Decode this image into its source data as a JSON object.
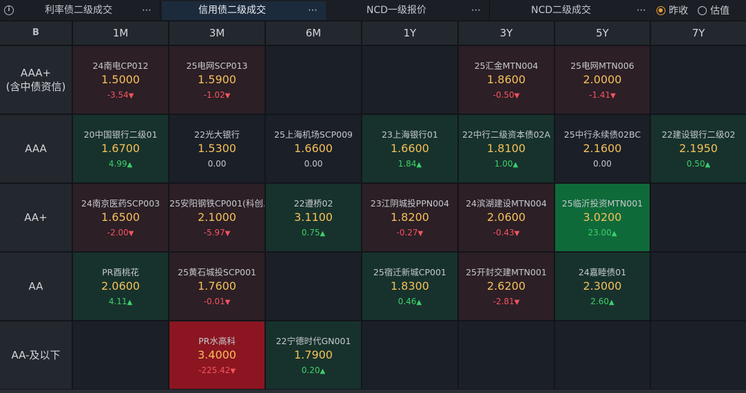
{
  "tabs": [
    {
      "label": "利率债二级成交",
      "more": "⋯"
    },
    {
      "label": "信用债二级成交",
      "more": "⋯"
    },
    {
      "label": "NCD一级报价",
      "more": "⋯"
    },
    {
      "label": "NCD二级成交",
      "more": "⋯"
    }
  ],
  "radios": [
    {
      "label": "昨收"
    },
    {
      "label": "估值"
    }
  ],
  "corner_label": "B",
  "columns": [
    "1M",
    "3M",
    "6M",
    "1Y",
    "3Y",
    "5Y",
    "7Y"
  ],
  "rows": [
    {
      "label_line1": "AAA+",
      "label_line2": "(含中债资信)"
    },
    {
      "label_line1": "AAA",
      "label_line2": ""
    },
    {
      "label_line1": "AA+",
      "label_line2": ""
    },
    {
      "label_line1": "AA",
      "label_line2": ""
    },
    {
      "label_line1": "AA-及以下",
      "label_line2": ""
    }
  ],
  "cells": [
    [
      {
        "name": "24南电CP012",
        "price": "1.5000",
        "change": "-3.54",
        "dir": "down",
        "tone": "red"
      },
      {
        "name": "25电网SCP013",
        "price": "1.5900",
        "change": "-1.02",
        "dir": "down",
        "tone": "red"
      },
      null,
      null,
      {
        "name": "25汇金MTN004",
        "price": "1.8600",
        "change": "-0.50",
        "dir": "down",
        "tone": "red"
      },
      {
        "name": "25电网MTN006",
        "price": "2.0000",
        "change": "-1.41",
        "dir": "down",
        "tone": "red"
      },
      null
    ],
    [
      {
        "name": "20中国银行二级01",
        "price": "1.6700",
        "change": "4.99",
        "dir": "up",
        "tone": "green"
      },
      {
        "name": "22光大银行",
        "price": "1.5300",
        "change": "0.00",
        "dir": "flat",
        "tone": "neutral"
      },
      {
        "name": "25上海机场SCP009",
        "price": "1.6600",
        "change": "0.00",
        "dir": "flat",
        "tone": "neutral"
      },
      {
        "name": "23上海银行01",
        "price": "1.6600",
        "change": "1.84",
        "dir": "up",
        "tone": "green"
      },
      {
        "name": "22中行二级资本债02A",
        "price": "1.8100",
        "change": "1.00",
        "dir": "up",
        "tone": "green"
      },
      {
        "name": "25中行永续债02BC",
        "price": "2.1600",
        "change": "0.00",
        "dir": "flat",
        "tone": "neutral"
      },
      {
        "name": "22建设银行二级02",
        "price": "2.1950",
        "change": "0.50",
        "dir": "up",
        "tone": "green"
      }
    ],
    [
      {
        "name": "24南京医药SCP003",
        "price": "1.6500",
        "change": "-2.00",
        "dir": "down",
        "tone": "red"
      },
      {
        "name": "25安阳钢铁CP001(科创...",
        "price": "2.1000",
        "change": "-5.97",
        "dir": "down",
        "tone": "red"
      },
      {
        "name": "22遵桥02",
        "price": "3.1100",
        "change": "0.75",
        "dir": "up",
        "tone": "green"
      },
      {
        "name": "23江阴城投PPN004",
        "price": "1.8200",
        "change": "-0.27",
        "dir": "down",
        "tone": "red"
      },
      {
        "name": "24滨湖建设MTN004",
        "price": "2.0600",
        "change": "-0.43",
        "dir": "down",
        "tone": "red"
      },
      {
        "name": "25临沂投资MTN001",
        "price": "3.0200",
        "change": "23.00",
        "dir": "up",
        "tone": "bright-green"
      },
      null
    ],
    [
      {
        "name": "PR酉桃花",
        "price": "2.0600",
        "change": "4.11",
        "dir": "up",
        "tone": "green"
      },
      {
        "name": "25黄石城投SCP001",
        "price": "1.7600",
        "change": "-0.01",
        "dir": "down",
        "tone": "red"
      },
      null,
      {
        "name": "25宿迁新城CP001",
        "price": "1.8300",
        "change": "0.46",
        "dir": "up",
        "tone": "green"
      },
      {
        "name": "25开封交建MTN001",
        "price": "2.6200",
        "change": "-2.81",
        "dir": "down",
        "tone": "red"
      },
      {
        "name": "24嘉睦债01",
        "price": "2.3000",
        "change": "2.60",
        "dir": "up",
        "tone": "green"
      },
      null
    ],
    [
      null,
      {
        "name": "PR水高科",
        "price": "3.4000",
        "change": "-225.42",
        "dir": "down",
        "tone": "bright-red"
      },
      {
        "name": "22宁德时代GN001",
        "price": "1.7900",
        "change": "0.20",
        "dir": "up",
        "tone": "green"
      },
      null,
      null,
      null,
      null
    ]
  ]
}
